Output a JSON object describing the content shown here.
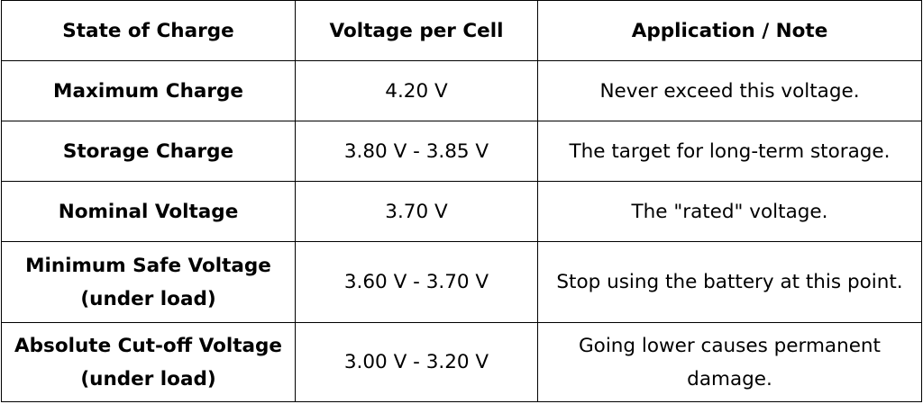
{
  "table": {
    "headers": [
      "State of Charge",
      "Voltage per Cell",
      "Application / Note"
    ],
    "rows": [
      {
        "state": [
          "Maximum Charge"
        ],
        "voltage": "4.20 V",
        "note": [
          "Never exceed this voltage."
        ]
      },
      {
        "state": [
          "Storage Charge"
        ],
        "voltage": "3.80 V - 3.85 V",
        "note": [
          "The target for long-term storage."
        ]
      },
      {
        "state": [
          "Nominal Voltage"
        ],
        "voltage": "3.70 V",
        "note": [
          "The \"rated\" voltage."
        ]
      },
      {
        "state": [
          "Minimum Safe Voltage",
          "(under load)"
        ],
        "voltage": "3.60 V - 3.70 V",
        "note": [
          "Stop using the battery at this point."
        ]
      },
      {
        "state": [
          "Absolute Cut-off Voltage",
          "(under load)"
        ],
        "voltage": "3.00 V - 3.20 V",
        "note": [
          "Going lower causes permanent",
          "damage."
        ]
      }
    ]
  }
}
